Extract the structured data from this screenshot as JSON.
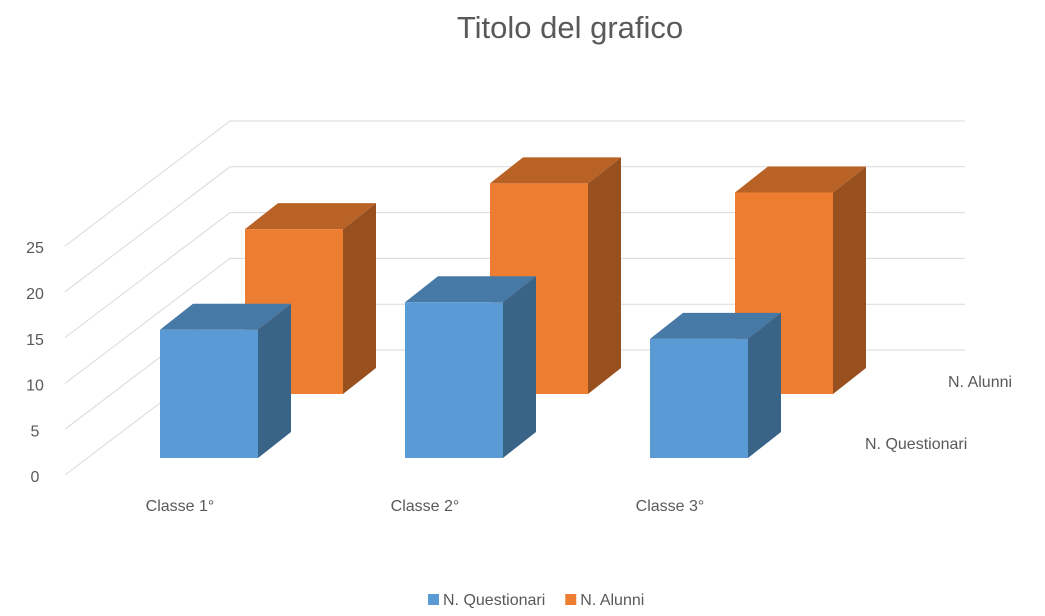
{
  "chart_data": {
    "type": "bar3d",
    "title": "Titolo del grafico",
    "categories": [
      "Classe 1°",
      "Classe 2°",
      "Classe 3°"
    ],
    "series": [
      {
        "name": "N. Questionari",
        "color": "#5b9bd5",
        "values": [
          14,
          17,
          13
        ]
      },
      {
        "name": "N. Alunni",
        "color": "#ed7d31",
        "values": [
          18,
          23,
          22
        ]
      }
    ],
    "ylim": [
      0,
      25
    ],
    "yticks": [
      0,
      5,
      10,
      15,
      20,
      25
    ],
    "grid": true,
    "legend": "bottom"
  }
}
